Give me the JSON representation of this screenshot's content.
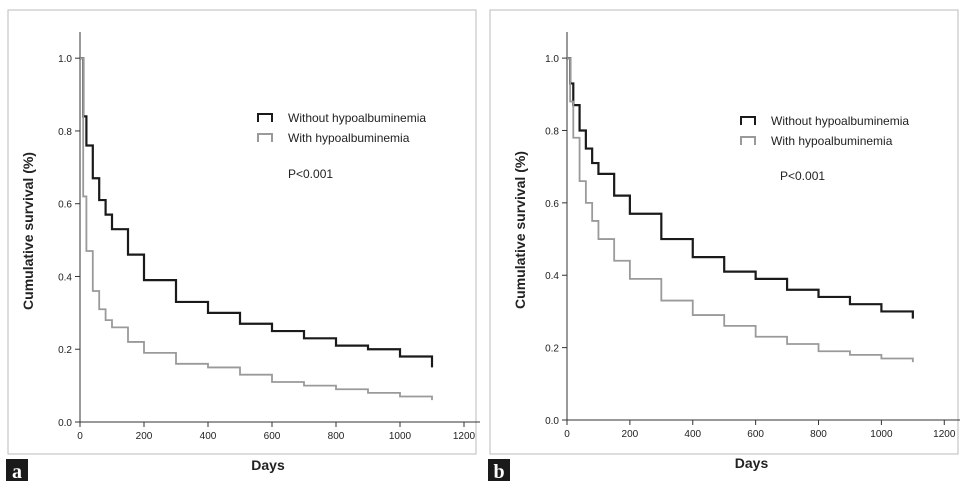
{
  "colors": {
    "series1": "#1a1a1a",
    "series2": "#9a9a9a",
    "axis": "#333333",
    "border": "#bbbbbb"
  },
  "chart_data": [
    {
      "type": "line",
      "panel_label": "a",
      "xlabel": "Days",
      "ylabel": "Cumulative survival (%)",
      "xlim": [
        0,
        1250
      ],
      "ylim": [
        0,
        1.05
      ],
      "xticks": [
        0,
        200,
        400,
        600,
        800,
        1000,
        1200
      ],
      "yticks": [
        0.0,
        0.2,
        0.4,
        0.6,
        0.8,
        1.0
      ],
      "annotation": "P<0.001",
      "legend_position": "top-right",
      "series": [
        {
          "name": "Without hypoalbuminemia",
          "x": [
            0,
            10,
            20,
            40,
            60,
            80,
            100,
            150,
            200,
            300,
            400,
            500,
            600,
            700,
            800,
            900,
            1000,
            1100
          ],
          "y": [
            1.0,
            0.84,
            0.76,
            0.67,
            0.61,
            0.57,
            0.53,
            0.46,
            0.39,
            0.33,
            0.3,
            0.27,
            0.25,
            0.23,
            0.21,
            0.2,
            0.18,
            0.15
          ]
        },
        {
          "name": "With hypoalbuminemia",
          "x": [
            0,
            10,
            20,
            40,
            60,
            80,
            100,
            150,
            200,
            300,
            400,
            500,
            600,
            700,
            800,
            900,
            1000,
            1100
          ],
          "y": [
            1.0,
            0.62,
            0.47,
            0.36,
            0.31,
            0.28,
            0.26,
            0.22,
            0.19,
            0.16,
            0.15,
            0.13,
            0.11,
            0.1,
            0.09,
            0.08,
            0.07,
            0.06
          ]
        }
      ]
    },
    {
      "type": "line",
      "panel_label": "b",
      "xlabel": "Days",
      "ylabel": "Cumulative survival (%)",
      "xlim": [
        0,
        1250
      ],
      "ylim": [
        0,
        1.05
      ],
      "xticks": [
        0,
        200,
        400,
        600,
        800,
        1000,
        1200
      ],
      "yticks": [
        0.0,
        0.2,
        0.4,
        0.6,
        0.8,
        1.0
      ],
      "annotation": "P<0.001",
      "legend_position": "top-right",
      "series": [
        {
          "name": "Without hypoalbuminemia",
          "x": [
            0,
            10,
            20,
            40,
            60,
            80,
            100,
            150,
            200,
            300,
            400,
            500,
            600,
            700,
            800,
            900,
            1000,
            1100
          ],
          "y": [
            1.0,
            0.93,
            0.87,
            0.8,
            0.75,
            0.71,
            0.68,
            0.62,
            0.57,
            0.5,
            0.45,
            0.41,
            0.39,
            0.36,
            0.34,
            0.32,
            0.3,
            0.28
          ]
        },
        {
          "name": "With hypoalbuminemia",
          "x": [
            0,
            10,
            20,
            40,
            60,
            80,
            100,
            150,
            200,
            300,
            400,
            500,
            600,
            700,
            800,
            900,
            1000,
            1100
          ],
          "y": [
            1.0,
            0.88,
            0.78,
            0.66,
            0.6,
            0.55,
            0.5,
            0.44,
            0.39,
            0.33,
            0.29,
            0.26,
            0.23,
            0.21,
            0.19,
            0.18,
            0.17,
            0.16
          ]
        }
      ]
    }
  ]
}
